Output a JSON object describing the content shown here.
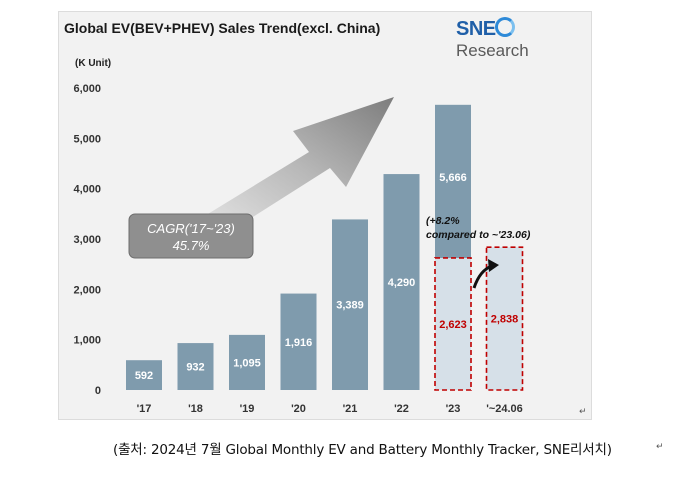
{
  "title": "Global EV(BEV+PHEV)  Sales Trend(excl. China)",
  "logo": {
    "brand": "SNE",
    "suffix": "Research"
  },
  "unit_label": "(K Unit)",
  "cagr": {
    "line1": "CAGR('17~'23)",
    "line2": "45.7%"
  },
  "growth_note": {
    "line1": "(+8.2%",
    "line2": "compared to ~'23.06)"
  },
  "source": "(출처: 2024년 7월  Global Monthly EV and Battery Monthly Tracker, SNE리서치)",
  "return_mark": "↵",
  "colors": {
    "bar": "#7f9bad",
    "bar_light": "#d6e0e8",
    "dashed": "#c00000",
    "arrow": "#9a9a9a"
  },
  "chart_data": {
    "type": "bar",
    "categories": [
      "'17",
      "'18",
      "'19",
      "'20",
      "'21",
      "'22",
      "'23",
      "'~24.06"
    ],
    "values": [
      592,
      932,
      1095,
      1916,
      3389,
      4290,
      5666,
      null
    ],
    "value_labels": [
      "592",
      "932",
      "1,095",
      "1,916",
      "3,389",
      "4,290",
      "5,666",
      ""
    ],
    "partial": [
      {
        "category": "'23",
        "value": 2623,
        "label": "2,623"
      },
      {
        "category": "'~24.06",
        "value": 2838,
        "label": "2,838"
      }
    ],
    "ylim": [
      0,
      6000
    ],
    "yticks": [
      0,
      1000,
      2000,
      3000,
      4000,
      5000,
      6000
    ],
    "ytick_labels": [
      "0",
      "1,000",
      "2,000",
      "3,000",
      "4,000",
      "5,000",
      "6,000"
    ],
    "grid": false,
    "ylabel": "(K Unit)"
  }
}
